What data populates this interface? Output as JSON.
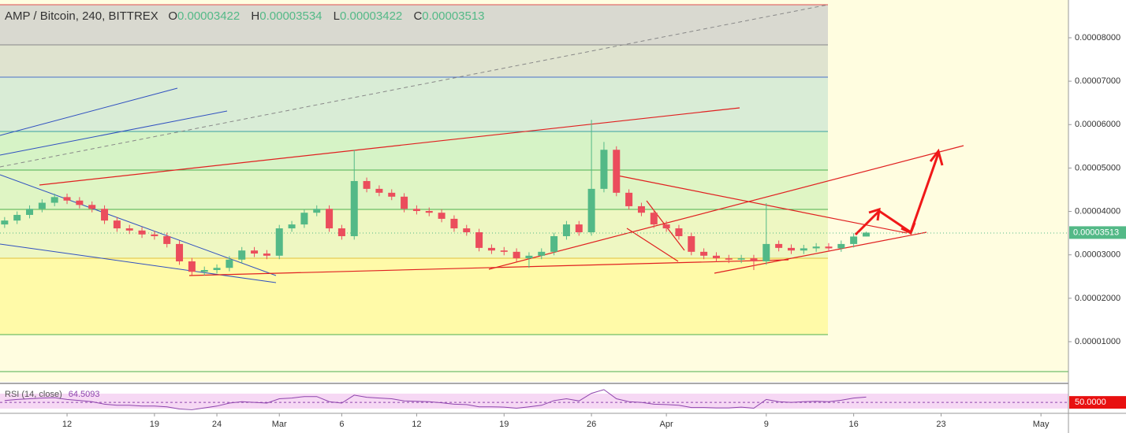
{
  "chart_data": [
    {
      "type": "candlestick",
      "title": "AMP / Bitcoin, 240, BITTREX",
      "ohlc_labels": [
        "O",
        "H",
        "L",
        "C"
      ],
      "up_color": "#53b987",
      "down_color": "#eb4d5c",
      "x": [
        -5,
        -4,
        -3,
        -2,
        -1,
        0,
        1,
        2,
        3,
        4,
        5,
        6,
        7,
        8,
        9,
        10,
        11,
        12,
        13,
        14,
        15,
        16,
        17,
        18,
        19,
        20,
        21,
        22,
        23,
        24,
        25,
        26,
        27,
        28,
        29,
        30,
        31,
        32,
        33,
        34,
        35,
        36,
        37,
        38,
        39,
        40,
        41,
        42,
        43,
        44,
        45,
        46,
        47,
        48,
        49,
        50,
        51,
        52,
        53,
        54,
        55,
        56,
        57,
        58,
        59,
        60,
        61,
        62,
        63,
        64
      ],
      "open": [
        3.7e-05,
        3.79e-05,
        3.92e-05,
        4.06e-05,
        4.2e-05,
        4.33e-05,
        4.25e-05,
        4.15e-05,
        4.06e-05,
        3.79e-05,
        3.61e-05,
        3.56e-05,
        3.47e-05,
        3.43e-05,
        3.25e-05,
        2.85e-05,
        2.61e-05,
        2.65e-05,
        2.7e-05,
        2.89e-05,
        3.1e-05,
        3.03e-05,
        2.98e-05,
        3.61e-05,
        3.7e-05,
        3.97e-05,
        4.06e-05,
        3.61e-05,
        3.43e-05,
        4.7e-05,
        4.52e-05,
        4.43e-05,
        4.34e-05,
        4.06e-05,
        4.01e-05,
        3.97e-05,
        3.83e-05,
        3.61e-05,
        3.52e-05,
        3.16e-05,
        3.1e-05,
        3.07e-05,
        2.92e-05,
        2.98e-05,
        3.07e-05,
        3.43e-05,
        3.7e-05,
        3.52e-05,
        4.52e-05,
        5.42e-05,
        4.43e-05,
        4.12e-05,
        3.97e-05,
        3.7e-05,
        3.61e-05,
        3.43e-05,
        3.07e-05,
        2.98e-05,
        2.92e-05,
        2.89e-05,
        2.92e-05,
        2.85e-05,
        3.25e-05,
        3.16e-05,
        3.1e-05,
        3.15e-05,
        3.19e-05,
        3.15e-05,
        3.25e-05,
        3.422e-05
      ],
      "high": [
        3.87e-05,
        4e-05,
        4.14e-05,
        4.28e-05,
        4.41e-05,
        4.41e-05,
        4.33e-05,
        4.23e-05,
        4.14e-05,
        3.87e-05,
        3.69e-05,
        3.64e-05,
        3.55e-05,
        3.51e-05,
        3.33e-05,
        2.93e-05,
        2.73e-05,
        2.78e-05,
        2.97e-05,
        3.18e-05,
        3.18e-05,
        3.11e-05,
        3.69e-05,
        3.78e-05,
        4.05e-05,
        4.14e-05,
        4.14e-05,
        3.69e-05,
        5.42e-05,
        4.78e-05,
        4.6e-05,
        4.51e-05,
        4.42e-05,
        4.14e-05,
        4.09e-05,
        4.05e-05,
        3.91e-05,
        3.69e-05,
        3.6e-05,
        3.24e-05,
        3.18e-05,
        3.15e-05,
        3.06e-05,
        3.15e-05,
        3.51e-05,
        3.78e-05,
        3.78e-05,
        6.11e-05,
        5.6e-05,
        5.5e-05,
        4.51e-05,
        4.2e-05,
        4.05e-05,
        3.78e-05,
        3.69e-05,
        3.51e-05,
        3.15e-05,
        3.06e-05,
        3e-05,
        3e-05,
        3e-05,
        4.19e-05,
        3.33e-05,
        3.24e-05,
        3.23e-05,
        3.27e-05,
        3.27e-05,
        3.33e-05,
        3.5e-05,
        3.534e-05
      ],
      "low": [
        3.62e-05,
        3.71e-05,
        3.84e-05,
        3.98e-05,
        4.12e-05,
        4.17e-05,
        4.07e-05,
        3.98e-05,
        3.71e-05,
        3.53e-05,
        3.48e-05,
        3.39e-05,
        3.35e-05,
        3.17e-05,
        2.77e-05,
        2.53e-05,
        2.53e-05,
        2.57e-05,
        2.62e-05,
        2.81e-05,
        2.95e-05,
        2.9e-05,
        2.9e-05,
        3.53e-05,
        3.62e-05,
        3.89e-05,
        3.53e-05,
        3.35e-05,
        3.35e-05,
        4.44e-05,
        4.35e-05,
        4.26e-05,
        3.98e-05,
        3.93e-05,
        3.89e-05,
        3.75e-05,
        3.53e-05,
        3.44e-05,
        3.08e-05,
        3.02e-05,
        2.99e-05,
        2.84e-05,
        2.7e-05,
        2.9e-05,
        2.99e-05,
        3.35e-05,
        3.44e-05,
        3.44e-05,
        4.44e-05,
        4.35e-05,
        4.04e-05,
        3.89e-05,
        3.62e-05,
        3.53e-05,
        3.35e-05,
        2.99e-05,
        2.9e-05,
        2.84e-05,
        2.81e-05,
        2.81e-05,
        2.65e-05,
        2.77e-05,
        3.08e-05,
        3.02e-05,
        3.02e-05,
        3.07e-05,
        3.07e-05,
        3.07e-05,
        3.17e-05,
        3.422e-05
      ],
      "close": [
        3.79e-05,
        3.92e-05,
        4.06e-05,
        4.2e-05,
        4.33e-05,
        4.25e-05,
        4.15e-05,
        4.06e-05,
        3.79e-05,
        3.61e-05,
        3.56e-05,
        3.47e-05,
        3.43e-05,
        3.25e-05,
        2.85e-05,
        2.61e-05,
        2.65e-05,
        2.7e-05,
        2.89e-05,
        3.1e-05,
        3.03e-05,
        2.98e-05,
        3.61e-05,
        3.7e-05,
        3.97e-05,
        4.06e-05,
        3.61e-05,
        3.43e-05,
        4.7e-05,
        4.52e-05,
        4.43e-05,
        4.34e-05,
        4.06e-05,
        4.01e-05,
        3.97e-05,
        3.83e-05,
        3.61e-05,
        3.52e-05,
        3.16e-05,
        3.1e-05,
        3.07e-05,
        2.92e-05,
        2.98e-05,
        3.07e-05,
        3.43e-05,
        3.7e-05,
        3.52e-05,
        4.52e-05,
        5.42e-05,
        4.43e-05,
        4.12e-05,
        3.97e-05,
        3.7e-05,
        3.61e-05,
        3.43e-05,
        3.07e-05,
        2.98e-05,
        2.92e-05,
        2.89e-05,
        2.92e-05,
        2.85e-05,
        3.25e-05,
        3.16e-05,
        3.1e-05,
        3.15e-05,
        3.19e-05,
        3.15e-05,
        3.25e-05,
        3.422e-05,
        3.513e-05
      ],
      "xlim": [
        -5.37,
        80.2
      ],
      "xticks": [
        {
          "value": 0,
          "label": "12"
        },
        {
          "value": 7,
          "label": "19"
        },
        {
          "value": 12,
          "label": "24"
        },
        {
          "value": 17,
          "label": "Mar"
        },
        {
          "value": 22,
          "label": "6"
        },
        {
          "value": 28,
          "label": "12"
        },
        {
          "value": 35,
          "label": "19"
        },
        {
          "value": 42,
          "label": "26"
        },
        {
          "value": 48,
          "label": "Apr"
        },
        {
          "value": 56,
          "label": "9"
        },
        {
          "value": 63,
          "label": "16"
        },
        {
          "value": 70,
          "label": "23"
        },
        {
          "value": 78,
          "label": "May"
        }
      ],
      "ylim": [
        7.5e-07,
        8.87e-05
      ],
      "yticks": [
        {
          "value": 1e-05,
          "label": "0.00001000"
        },
        {
          "value": 2e-05,
          "label": "0.00002000"
        },
        {
          "value": 3e-05,
          "label": "0.00003000"
        },
        {
          "value": 4e-05,
          "label": "0.00004000"
        },
        {
          "value": 5e-05,
          "label": "0.00005000"
        },
        {
          "value": 6e-05,
          "label": "0.00006000"
        },
        {
          "value": 7e-05,
          "label": "0.00007000"
        },
        {
          "value": 8e-05,
          "label": "0.00008000"
        }
      ]
    },
    {
      "type": "line",
      "title": "RSI (14, close)",
      "color": "#8e44ad",
      "values": [
        55,
        58,
        60,
        62,
        63,
        58,
        55,
        52,
        45,
        42,
        42,
        40,
        40,
        38,
        32,
        30,
        35,
        40,
        48,
        52,
        50,
        48,
        60,
        62,
        66,
        66,
        52,
        48,
        70,
        64,
        62,
        60,
        54,
        53,
        52,
        49,
        45,
        44,
        38,
        38,
        37,
        34,
        38,
        42,
        55,
        60,
        54,
        75,
        85,
        60,
        52,
        50,
        45,
        44,
        42,
        36,
        36,
        35,
        35,
        37,
        34,
        58,
        52,
        50,
        52,
        53,
        52,
        56,
        62,
        64.5093
      ],
      "ylim": [
        20,
        100
      ],
      "yticks": [
        {
          "value": 50,
          "label": "50.0000"
        }
      ]
    }
  ]
}
